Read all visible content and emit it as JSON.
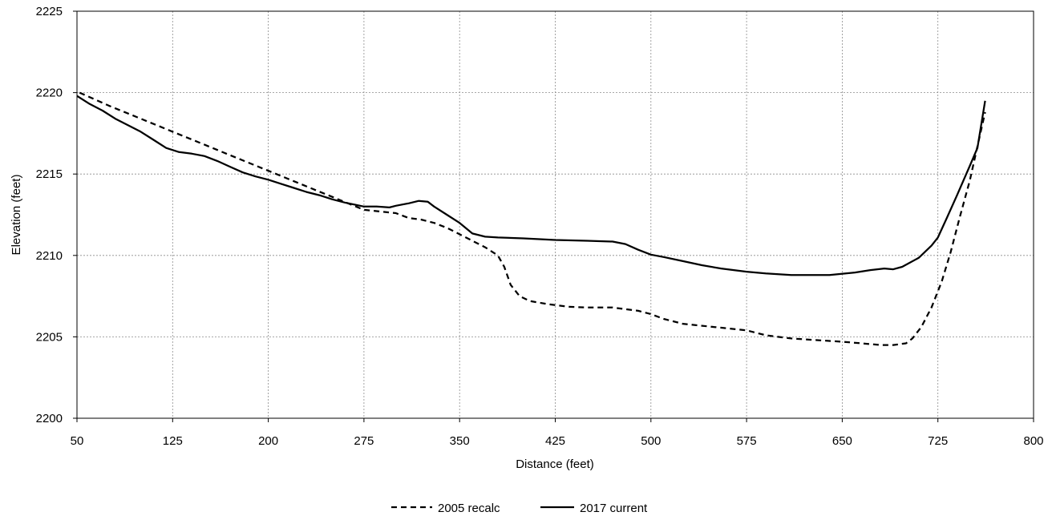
{
  "chart_data": {
    "type": "line",
    "title": "",
    "xlabel": "Distance (feet)",
    "ylabel": "Elevation (feet)",
    "xlim": [
      50,
      800
    ],
    "ylim": [
      2200,
      2225
    ],
    "x_ticks": [
      "50",
      "125",
      "200",
      "275",
      "350",
      "425",
      "500",
      "575",
      "650",
      "725",
      "800"
    ],
    "y_ticks": [
      "2200",
      "2205",
      "2210",
      "2215",
      "2220",
      "2225"
    ],
    "grid": true,
    "legend_position": "bottom",
    "series": [
      {
        "name": "2005 recalc",
        "line_style": "dashed",
        "color": "#000000",
        "points": [
          [
            52,
            2220.0
          ],
          [
            75,
            2219.2
          ],
          [
            100,
            2218.4
          ],
          [
            125,
            2217.6
          ],
          [
            150,
            2216.8
          ],
          [
            175,
            2216.0
          ],
          [
            200,
            2215.2
          ],
          [
            225,
            2214.4
          ],
          [
            250,
            2213.6
          ],
          [
            275,
            2212.8
          ],
          [
            300,
            2212.6
          ],
          [
            310,
            2212.3
          ],
          [
            320,
            2212.2
          ],
          [
            330,
            2212.0
          ],
          [
            340,
            2211.7
          ],
          [
            350,
            2211.3
          ],
          [
            360,
            2210.9
          ],
          [
            370,
            2210.5
          ],
          [
            380,
            2210.0
          ],
          [
            385,
            2209.3
          ],
          [
            390,
            2208.2
          ],
          [
            397,
            2207.5
          ],
          [
            405,
            2207.2
          ],
          [
            420,
            2207.0
          ],
          [
            435,
            2206.85
          ],
          [
            450,
            2206.8
          ],
          [
            470,
            2206.8
          ],
          [
            490,
            2206.6
          ],
          [
            500,
            2206.4
          ],
          [
            510,
            2206.1
          ],
          [
            525,
            2205.8
          ],
          [
            550,
            2205.6
          ],
          [
            575,
            2205.4
          ],
          [
            590,
            2205.1
          ],
          [
            610,
            2204.9
          ],
          [
            630,
            2204.8
          ],
          [
            650,
            2204.7
          ],
          [
            665,
            2204.6
          ],
          [
            680,
            2204.5
          ],
          [
            690,
            2204.5
          ],
          [
            700,
            2204.6
          ],
          [
            705,
            2204.9
          ],
          [
            712,
            2205.6
          ],
          [
            720,
            2206.8
          ],
          [
            728,
            2208.4
          ],
          [
            735,
            2210.2
          ],
          [
            742,
            2212.3
          ],
          [
            750,
            2214.6
          ],
          [
            756,
            2216.7
          ],
          [
            762,
            2218.8
          ]
        ]
      },
      {
        "name": "2017 current",
        "line_style": "solid",
        "color": "#000000",
        "points": [
          [
            50,
            2219.8
          ],
          [
            60,
            2219.3
          ],
          [
            70,
            2218.9
          ],
          [
            80,
            2218.4
          ],
          [
            90,
            2218.0
          ],
          [
            100,
            2217.6
          ],
          [
            110,
            2217.1
          ],
          [
            120,
            2216.6
          ],
          [
            130,
            2216.35
          ],
          [
            140,
            2216.25
          ],
          [
            150,
            2216.1
          ],
          [
            160,
            2215.8
          ],
          [
            170,
            2215.45
          ],
          [
            180,
            2215.1
          ],
          [
            190,
            2214.85
          ],
          [
            200,
            2214.65
          ],
          [
            210,
            2214.4
          ],
          [
            220,
            2214.15
          ],
          [
            230,
            2213.9
          ],
          [
            240,
            2213.7
          ],
          [
            250,
            2213.45
          ],
          [
            260,
            2213.25
          ],
          [
            275,
            2213.0
          ],
          [
            285,
            2213.0
          ],
          [
            295,
            2212.95
          ],
          [
            300,
            2213.05
          ],
          [
            310,
            2213.2
          ],
          [
            318,
            2213.35
          ],
          [
            325,
            2213.3
          ],
          [
            330,
            2213.0
          ],
          [
            340,
            2212.5
          ],
          [
            350,
            2212.0
          ],
          [
            360,
            2211.35
          ],
          [
            370,
            2211.15
          ],
          [
            380,
            2211.1
          ],
          [
            400,
            2211.05
          ],
          [
            425,
            2210.95
          ],
          [
            450,
            2210.9
          ],
          [
            470,
            2210.85
          ],
          [
            480,
            2210.7
          ],
          [
            490,
            2210.35
          ],
          [
            500,
            2210.05
          ],
          [
            510,
            2209.9
          ],
          [
            525,
            2209.65
          ],
          [
            540,
            2209.4
          ],
          [
            555,
            2209.2
          ],
          [
            575,
            2209.0
          ],
          [
            590,
            2208.9
          ],
          [
            610,
            2208.8
          ],
          [
            640,
            2208.8
          ],
          [
            660,
            2208.95
          ],
          [
            672,
            2209.1
          ],
          [
            683,
            2209.2
          ],
          [
            690,
            2209.15
          ],
          [
            697,
            2209.3
          ],
          [
            710,
            2209.85
          ],
          [
            720,
            2210.6
          ],
          [
            725,
            2211.1
          ],
          [
            732,
            2212.3
          ],
          [
            740,
            2213.7
          ],
          [
            750,
            2215.5
          ],
          [
            756,
            2216.6
          ],
          [
            762,
            2219.5
          ]
        ]
      }
    ]
  }
}
